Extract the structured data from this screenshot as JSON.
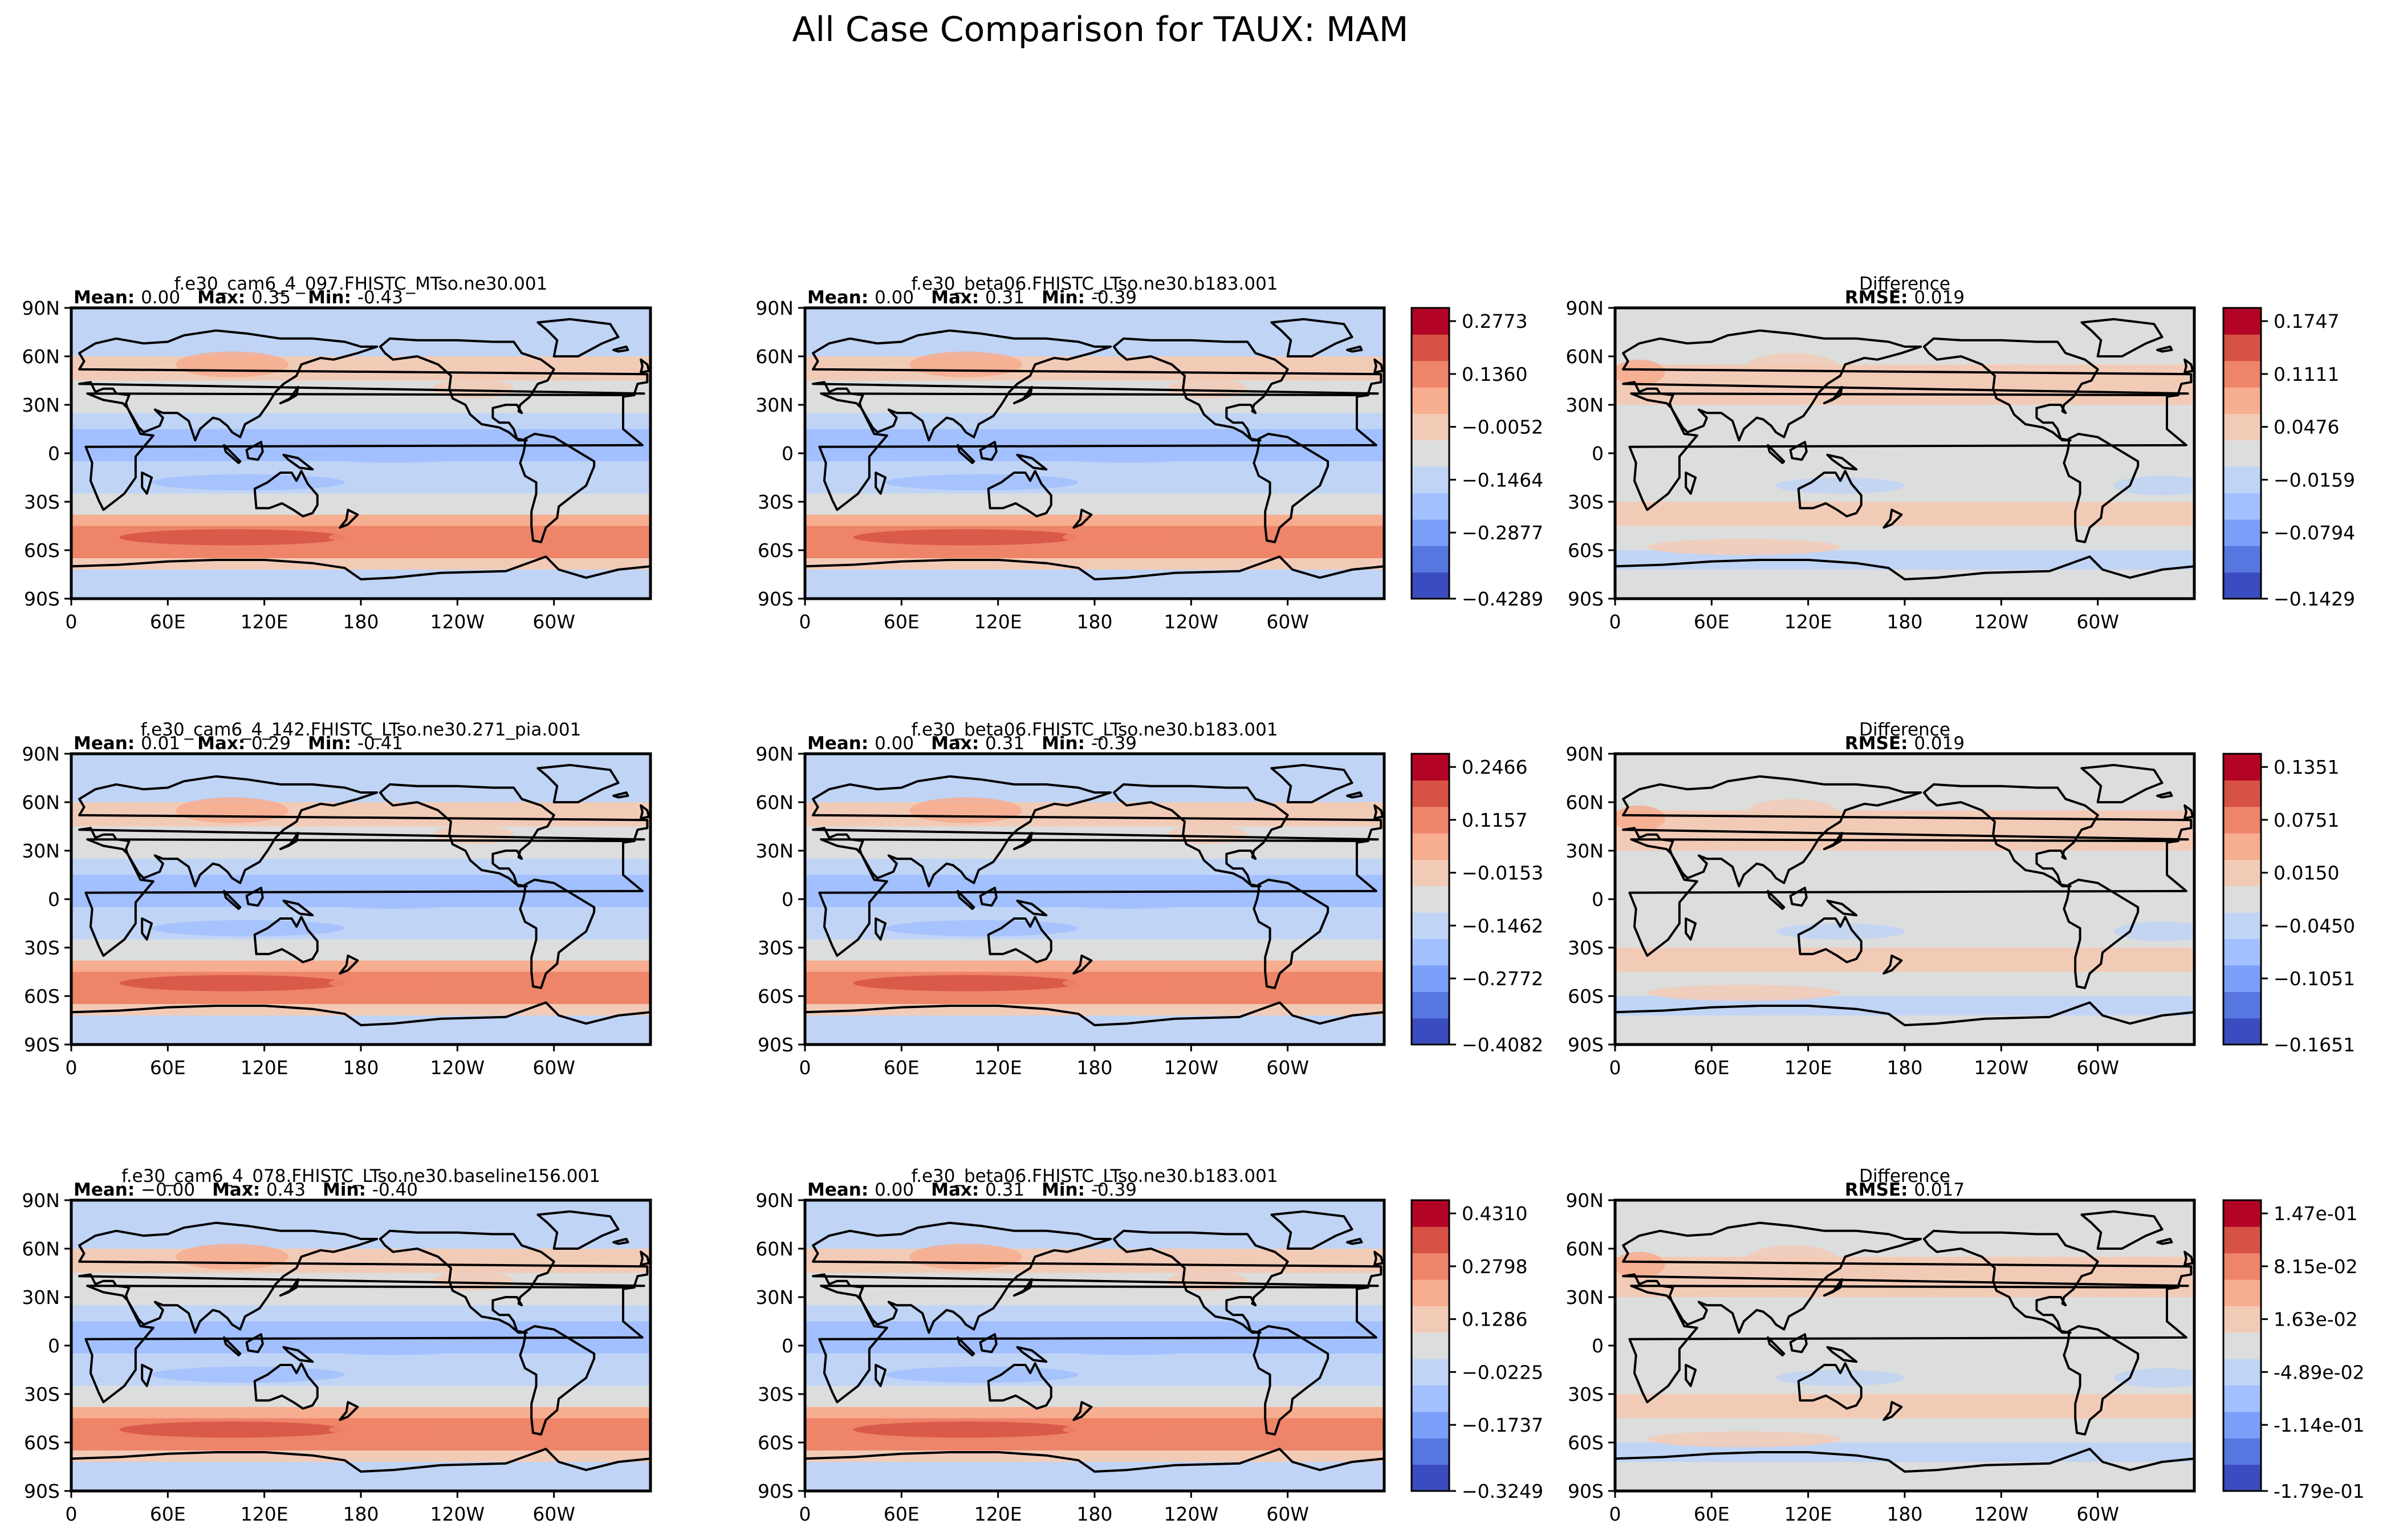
{
  "figure_title": "All Case Comparison for TAUX: MAM",
  "labels": {
    "mean": "Mean:",
    "max": "Max:",
    "min": "Min:",
    "rmse": "RMSE:"
  },
  "colors": {
    "map_diverging": [
      "#3b4cc0",
      "#5876e0",
      "#7b9ff9",
      "#a2c0ff",
      "#c0d4f5",
      "#dcdddd",
      "#f2cbb7",
      "#f7ad8f",
      "#ee8468",
      "#d65244",
      "#b40426"
    ],
    "land_outline": "#000000",
    "frame": "#000000"
  },
  "chart_data": [
    {
      "type": "heatmap",
      "panel": "row1-test",
      "title": "f.e30_cam6_4_097.FHISTC_MTso.ne30.001",
      "stats": {
        "mean": "0.00",
        "max": "0.35",
        "min": "-0.43"
      },
      "xticks": [
        "0",
        "60E",
        "120E",
        "180",
        "120W",
        "60W"
      ],
      "yticks": [
        "90N",
        "60N",
        "30N",
        "0",
        "30S",
        "60S",
        "90S"
      ]
    },
    {
      "type": "heatmap",
      "panel": "row1-ref",
      "title": "f.e30_beta06.FHISTC_LTso.ne30.b183.001",
      "stats": {
        "mean": "0.00",
        "max": "0.31",
        "min": "-0.39"
      },
      "xticks": [
        "0",
        "60E",
        "120E",
        "180",
        "120W",
        "60W"
      ],
      "yticks": [
        "90N",
        "60N",
        "30N",
        "0",
        "30S",
        "60S",
        "90S"
      ],
      "colorbar_ticks": [
        "0.2773",
        "0.1360",
        "−0.0052",
        "−0.1464",
        "−0.2877",
        "−0.4289"
      ]
    },
    {
      "type": "heatmap",
      "panel": "row1-diff",
      "title": "Difference",
      "stats": {
        "rmse": "0.019"
      },
      "xticks": [
        "0",
        "60E",
        "120E",
        "180",
        "120W",
        "60W"
      ],
      "yticks": [
        "90N",
        "60N",
        "30N",
        "0",
        "30S",
        "60S",
        "90S"
      ],
      "colorbar_ticks": [
        "0.1747",
        "0.1111",
        "0.0476",
        "−0.0159",
        "−0.0794",
        "−0.1429"
      ]
    },
    {
      "type": "heatmap",
      "panel": "row2-test",
      "title": "f.e30_cam6_4_142.FHISTC_LTso.ne30.271_pia.001",
      "stats": {
        "mean": "0.01",
        "max": "0.29",
        "min": "-0.41"
      },
      "xticks": [
        "0",
        "60E",
        "120E",
        "180",
        "120W",
        "60W"
      ],
      "yticks": [
        "90N",
        "60N",
        "30N",
        "0",
        "30S",
        "60S",
        "90S"
      ]
    },
    {
      "type": "heatmap",
      "panel": "row2-ref",
      "title": "f.e30_beta06.FHISTC_LTso.ne30.b183.001",
      "stats": {
        "mean": "0.00",
        "max": "0.31",
        "min": "-0.39"
      },
      "xticks": [
        "0",
        "60E",
        "120E",
        "180",
        "120W",
        "60W"
      ],
      "yticks": [
        "90N",
        "60N",
        "30N",
        "0",
        "30S",
        "60S",
        "90S"
      ],
      "colorbar_ticks": [
        "0.2466",
        "0.1157",
        "−0.0153",
        "−0.1462",
        "−0.2772",
        "−0.4082"
      ]
    },
    {
      "type": "heatmap",
      "panel": "row2-diff",
      "title": "Difference",
      "stats": {
        "rmse": "0.019"
      },
      "xticks": [
        "0",
        "60E",
        "120E",
        "180",
        "120W",
        "60W"
      ],
      "yticks": [
        "90N",
        "60N",
        "30N",
        "0",
        "30S",
        "60S",
        "90S"
      ],
      "colorbar_ticks": [
        "0.1351",
        "0.0751",
        "0.0150",
        "−0.0450",
        "−0.1051",
        "−0.1651"
      ]
    },
    {
      "type": "heatmap",
      "panel": "row3-test",
      "title": "f.e30_cam6_4_078.FHISTC_LTso.ne30.baseline156.001",
      "stats": {
        "mean": "−0.00",
        "max": "0.43",
        "min": "-0.40"
      },
      "xticks": [
        "0",
        "60E",
        "120E",
        "180",
        "120W",
        "60W"
      ],
      "yticks": [
        "90N",
        "60N",
        "30N",
        "0",
        "30S",
        "60S",
        "90S"
      ]
    },
    {
      "type": "heatmap",
      "panel": "row3-ref",
      "title": "f.e30_beta06.FHISTC_LTso.ne30.b183.001",
      "stats": {
        "mean": "0.00",
        "max": "0.31",
        "min": "-0.39"
      },
      "xticks": [
        "0",
        "60E",
        "120E",
        "180",
        "120W",
        "60W"
      ],
      "yticks": [
        "90N",
        "60N",
        "30N",
        "0",
        "30S",
        "60S",
        "90S"
      ],
      "colorbar_ticks": [
        "0.4310",
        "0.2798",
        "0.1286",
        "−0.0225",
        "−0.1737",
        "−0.3249"
      ]
    },
    {
      "type": "heatmap",
      "panel": "row3-diff",
      "title": "Difference",
      "stats": {
        "rmse": "0.017"
      },
      "xticks": [
        "0",
        "60E",
        "120E",
        "180",
        "120W",
        "60W"
      ],
      "yticks": [
        "90N",
        "60N",
        "30N",
        "0",
        "30S",
        "60S",
        "90S"
      ],
      "colorbar_ticks": [
        "1.47e-01",
        "8.15e-02",
        "1.63e-02",
        "-4.89e-02",
        "-1.14e-01",
        "-1.79e-01"
      ]
    }
  ]
}
